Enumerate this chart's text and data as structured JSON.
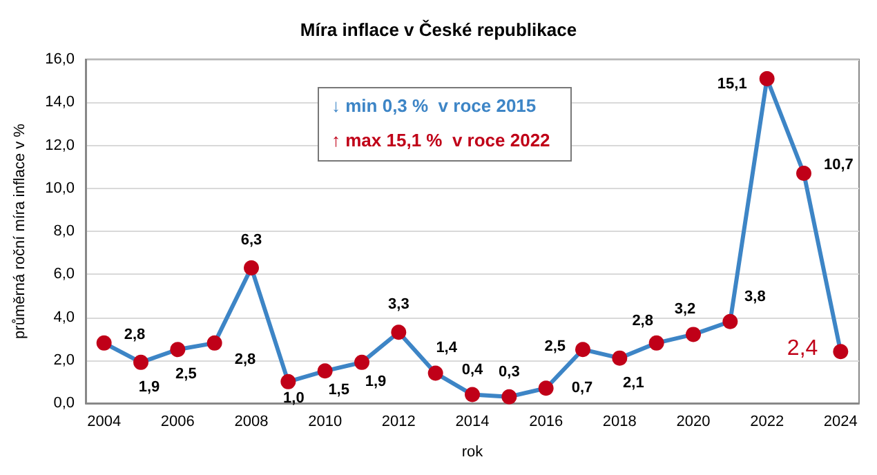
{
  "chart_data": {
    "type": "line",
    "title": "Míra inflace v České republikace",
    "xlabel": "rok",
    "ylabel": "průměrná roční míra inflace v %",
    "categories": [
      "2004",
      null,
      "2006",
      null,
      "2008",
      null,
      "2010",
      null,
      "2012",
      null,
      "2014",
      null,
      "2016",
      null,
      "2018",
      null,
      "2020",
      null,
      "2022",
      null,
      "2024"
    ],
    "series": [
      {
        "color": "#3d85c6",
        "colors": [
          "#c00018",
          "#c00018",
          "#c00018",
          "#c00018",
          "#c00018",
          "#c00018",
          "#c00018",
          "#c00018",
          "#c00018",
          "#c00018",
          "#c00018",
          "#c00018",
          "#c00018",
          "#c00018",
          "#c00018",
          "#c00018",
          "#c00018",
          "#c00018",
          "#c00018",
          "#c00018",
          "#c00018"
        ],
        "values": [
          2.8,
          1.9,
          2.5,
          2.8,
          6.3,
          1.0,
          1.5,
          1.9,
          3.3,
          1.4,
          0.4,
          0.3,
          0.7,
          2.5,
          2.1,
          2.8,
          3.2,
          3.8,
          15.1,
          10.7,
          2.4
        ],
        "value_labels": [
          "2,8",
          "1,9",
          "2,5",
          "2,8",
          "6,3",
          "1,0",
          "1,5",
          "1,9",
          "3,3",
          "1,4",
          "0,4",
          "0,3",
          "0,7",
          "2,5",
          "2,1",
          "2,8",
          "3,2",
          "3,8",
          "15,1",
          "10,7",
          "2,4"
        ]
      }
    ],
    "ylim": [
      0,
      16
    ],
    "yticks": [
      {
        "value": 0,
        "label": "0,0"
      },
      {
        "value": 2,
        "label": "2,0"
      },
      {
        "value": 4,
        "label": "4,0"
      },
      {
        "value": 6,
        "label": "6,0"
      },
      {
        "value": 8,
        "label": "8,0"
      },
      {
        "value": 10,
        "label": "10,0"
      },
      {
        "value": 12,
        "label": "12,0"
      },
      {
        "value": 14,
        "label": "14,0"
      },
      {
        "value": 16,
        "label": "16,0"
      }
    ],
    "annotations": [
      "↓ min 0,3 %  v roce 2015",
      "↑ max 15,1 %  v roce 2022"
    ],
    "grid": "y",
    "marker": "circle",
    "line_style": "solid"
  }
}
